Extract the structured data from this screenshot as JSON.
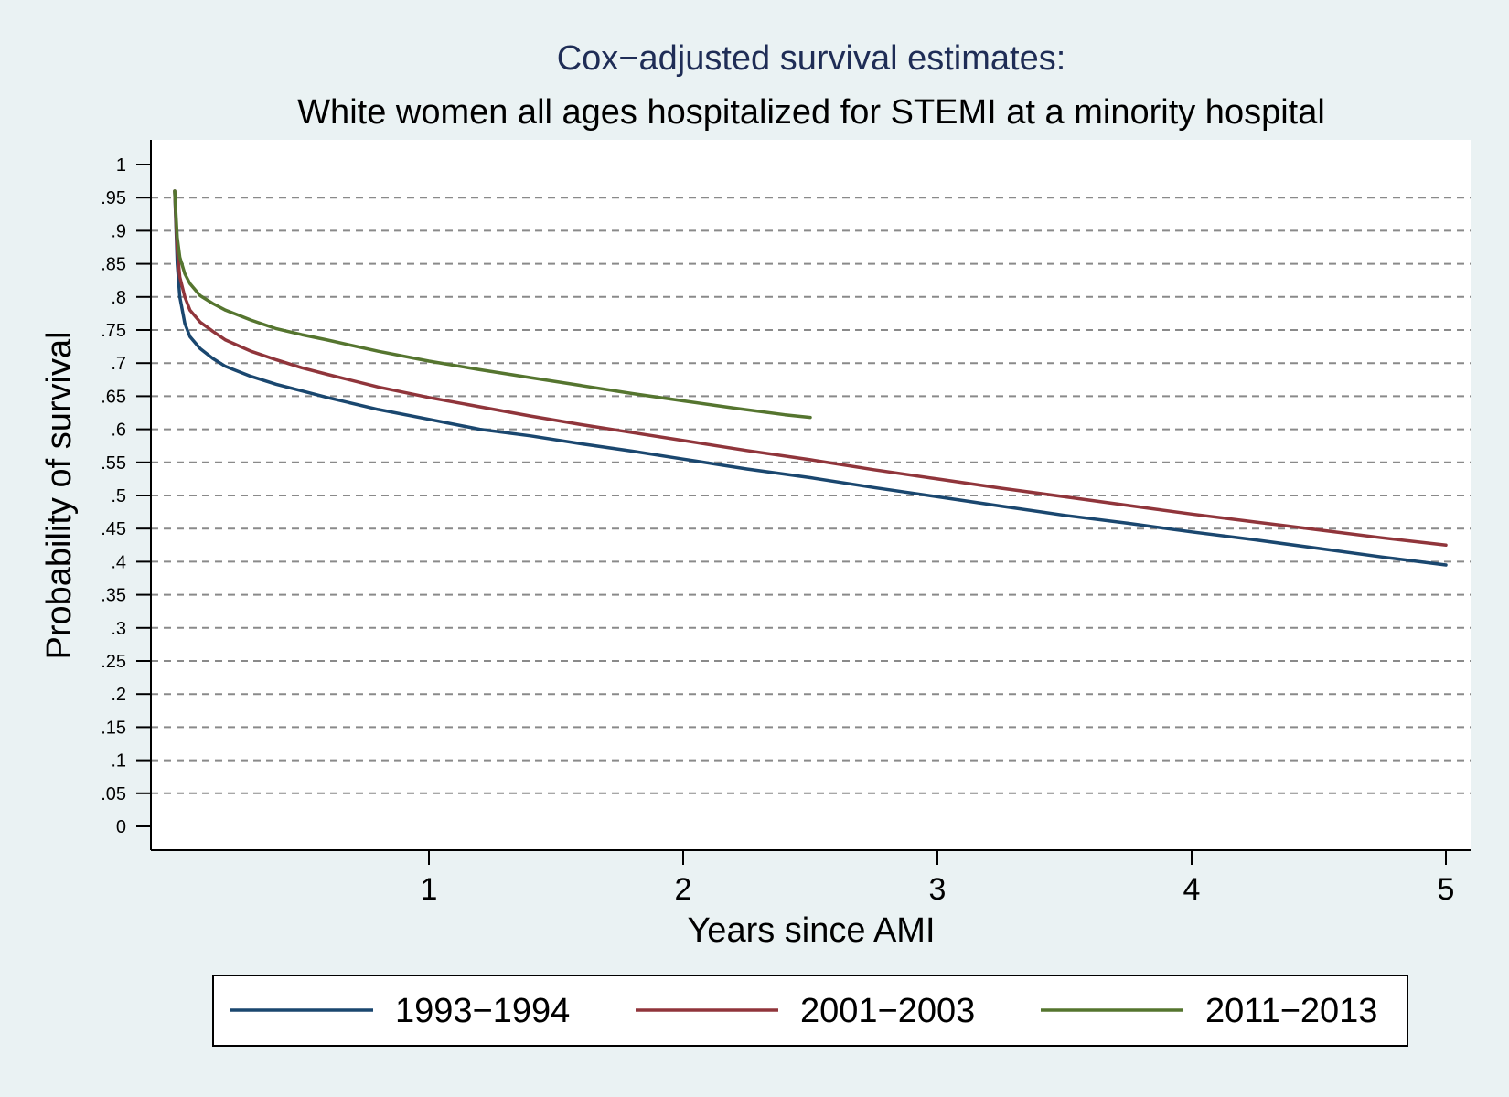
{
  "chart_data": {
    "type": "line",
    "title": "Cox−adjusted survival estimates:",
    "subtitle": "White women all ages hospitalized for STEMI at a minority hospital",
    "xlabel": "Years since AMI",
    "ylabel": "Probability of survival",
    "xlim": [
      0,
      5
    ],
    "ylim": [
      0,
      1
    ],
    "x_ticks": [
      "1",
      "2",
      "3",
      "4",
      "5"
    ],
    "x_tick_values": [
      1,
      2,
      3,
      4,
      5
    ],
    "y_ticks": [
      "0",
      ".05",
      ".1",
      ".15",
      ".2",
      ".25",
      ".3",
      ".35",
      ".4",
      ".45",
      ".5",
      ".55",
      ".6",
      ".65",
      ".7",
      ".75",
      ".8",
      ".85",
      ".9",
      ".95",
      "1"
    ],
    "y_tick_values": [
      0,
      0.05,
      0.1,
      0.15,
      0.2,
      0.25,
      0.3,
      0.35,
      0.4,
      0.45,
      0.5,
      0.55,
      0.6,
      0.65,
      0.7,
      0.75,
      0.8,
      0.85,
      0.9,
      0.95,
      1
    ],
    "grid": "horizontal dashed",
    "legend_position": "bottom",
    "series": [
      {
        "name": "1993−1994",
        "color": "#1a476f",
        "x": [
          0,
          0.01,
          0.02,
          0.04,
          0.06,
          0.1,
          0.15,
          0.2,
          0.3,
          0.4,
          0.5,
          0.6,
          0.8,
          1.0,
          1.2,
          1.4,
          1.6,
          1.8,
          2.0,
          2.25,
          2.5,
          2.75,
          3.0,
          3.25,
          3.5,
          3.75,
          4.0,
          4.25,
          4.5,
          4.75,
          5.0
        ],
        "y": [
          0.96,
          0.85,
          0.8,
          0.76,
          0.74,
          0.722,
          0.707,
          0.695,
          0.68,
          0.668,
          0.658,
          0.648,
          0.63,
          0.615,
          0.6,
          0.59,
          0.578,
          0.567,
          0.555,
          0.54,
          0.527,
          0.512,
          0.498,
          0.484,
          0.47,
          0.458,
          0.445,
          0.433,
          0.42,
          0.407,
          0.395
        ]
      },
      {
        "name": "2001−2003",
        "color": "#90353b",
        "x": [
          0,
          0.01,
          0.02,
          0.04,
          0.06,
          0.1,
          0.15,
          0.2,
          0.3,
          0.4,
          0.5,
          0.6,
          0.8,
          1.0,
          1.2,
          1.4,
          1.6,
          1.8,
          2.0,
          2.25,
          2.5,
          2.75,
          3.0,
          3.25,
          3.5,
          3.75,
          4.0,
          4.25,
          4.5,
          4.75,
          5.0
        ],
        "y": [
          0.96,
          0.87,
          0.83,
          0.8,
          0.78,
          0.762,
          0.748,
          0.735,
          0.718,
          0.705,
          0.693,
          0.683,
          0.664,
          0.648,
          0.634,
          0.62,
          0.607,
          0.595,
          0.583,
          0.568,
          0.554,
          0.539,
          0.525,
          0.511,
          0.498,
          0.485,
          0.472,
          0.46,
          0.448,
          0.436,
          0.425
        ]
      },
      {
        "name": "2011−2013",
        "color": "#55752f",
        "x": [
          0,
          0.01,
          0.02,
          0.04,
          0.06,
          0.1,
          0.15,
          0.2,
          0.3,
          0.4,
          0.5,
          0.6,
          0.8,
          1.0,
          1.2,
          1.4,
          1.6,
          1.8,
          2.0,
          2.2,
          2.4,
          2.5
        ],
        "y": [
          0.96,
          0.89,
          0.86,
          0.835,
          0.82,
          0.802,
          0.79,
          0.78,
          0.765,
          0.752,
          0.743,
          0.735,
          0.718,
          0.703,
          0.69,
          0.678,
          0.666,
          0.654,
          0.643,
          0.632,
          0.622,
          0.618
        ]
      }
    ]
  }
}
